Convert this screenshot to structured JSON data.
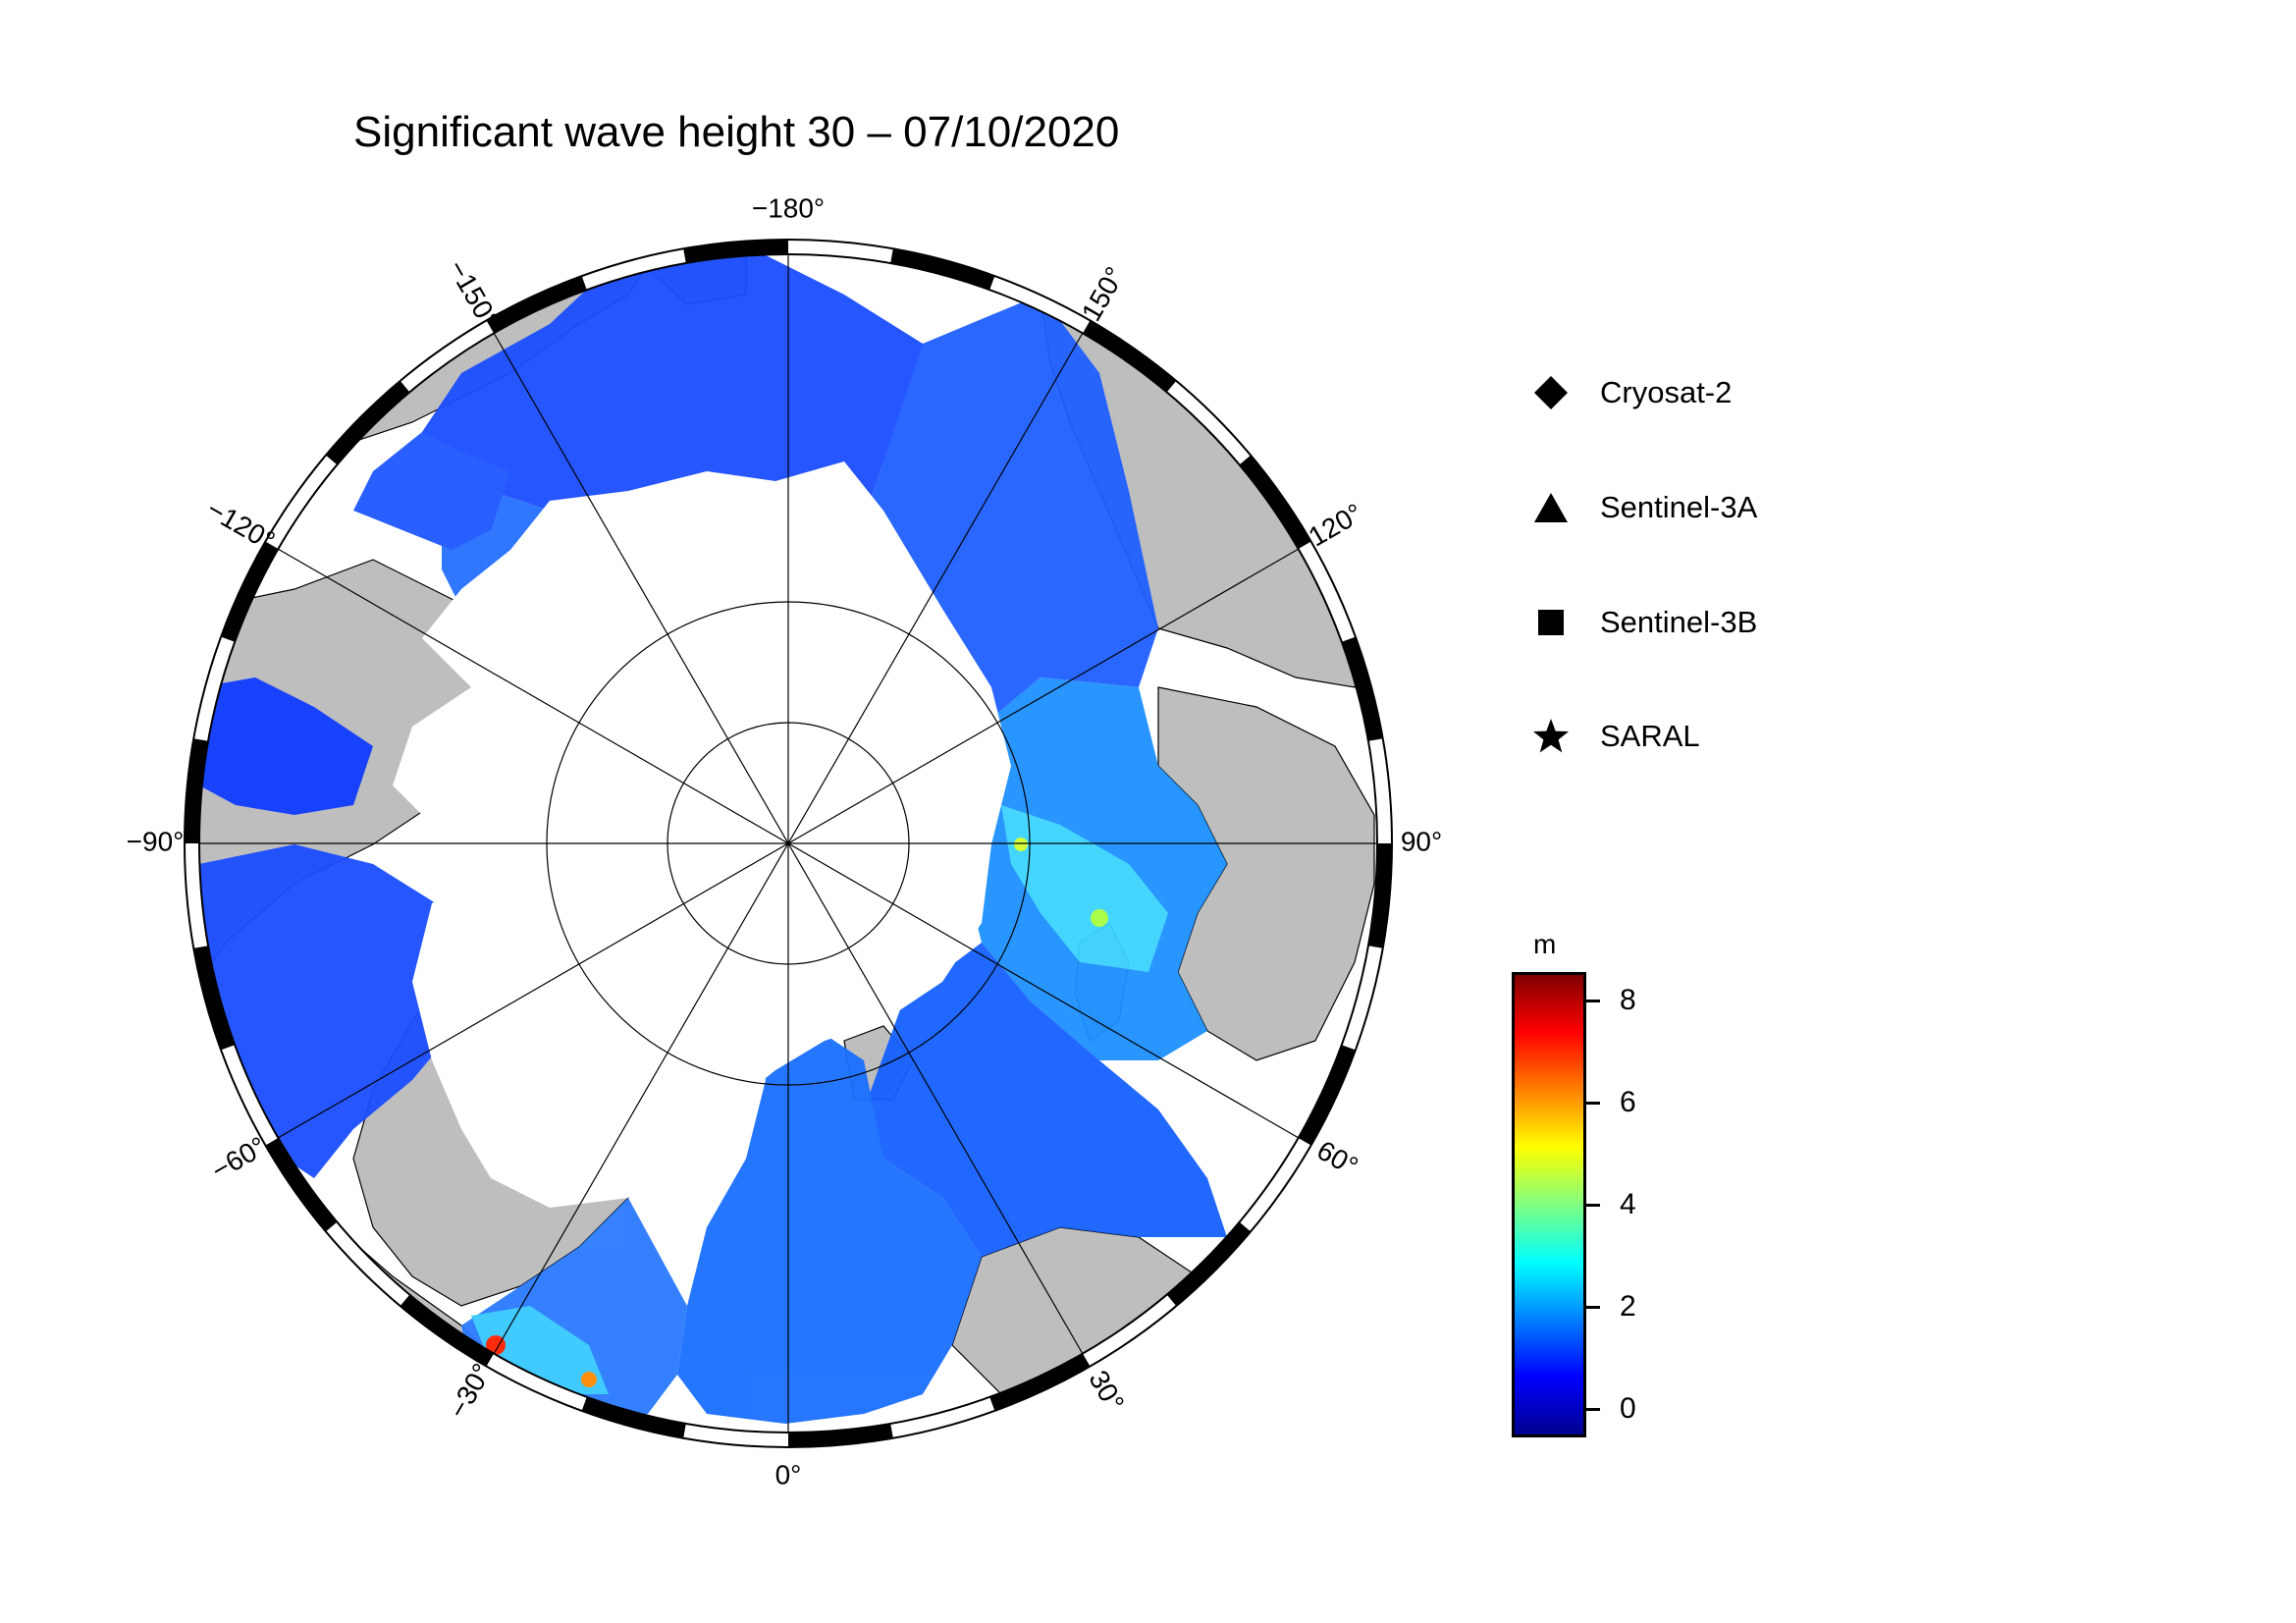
{
  "title": "Significant wave height 30 – 07/10/2020",
  "map": {
    "projection": "north-polar-stereographic",
    "longitude_labels": [
      "−180°",
      "150°",
      "120°",
      "90°",
      "60°",
      "30°",
      "0°",
      "−30°",
      "−60°",
      "−90°",
      "−120°",
      "−150°"
    ],
    "colors": {
      "land": "#bebebe",
      "ice": "#ffffff",
      "graticule": "#000000"
    }
  },
  "legend": {
    "items": [
      {
        "label": "Cryosat-2",
        "symbol": "diamond-icon"
      },
      {
        "label": "Sentinel-3A",
        "symbol": "triangle-icon"
      },
      {
        "label": "Sentinel-3B",
        "symbol": "square-icon"
      },
      {
        "label": "SARAL",
        "symbol": "star-icon"
      }
    ]
  },
  "colorbar": {
    "unit": "m",
    "ticks": [
      "8",
      "6",
      "4",
      "2",
      "0"
    ],
    "range": [
      -0.5,
      8.5
    ],
    "colormap": [
      "#00008f",
      "#0000ff",
      "#0080ff",
      "#00ffff",
      "#80ff80",
      "#ffff00",
      "#ff8000",
      "#ff0000",
      "#800000"
    ]
  }
}
